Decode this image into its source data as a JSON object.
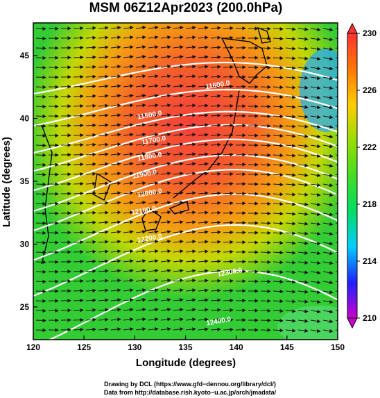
{
  "chart_data": {
    "type": "heatmap",
    "title": "MSM 06Z12Apr2023 (200.0hPa)",
    "xlabel": "Longitude (degrees)",
    "ylabel": "Latitude  (degrees)",
    "xlim": [
      120,
      150
    ],
    "ylim": [
      22.4,
      47.6
    ],
    "x_ticks": [
      120,
      125,
      130,
      135,
      140,
      145,
      150
    ],
    "y_ticks": [
      25,
      30,
      35,
      40,
      45
    ],
    "colorbar": {
      "min": 210,
      "max": 230,
      "ticks": [
        210,
        214,
        218,
        222,
        226,
        230
      ],
      "colormap": [
        "#cc00cc",
        "#2020ff",
        "#00ccff",
        "#00dd66",
        "#44dd22",
        "#99dd00",
        "#ffcc00",
        "#ff7700",
        "#ff3333"
      ]
    },
    "field": "temperature (shaded) with wind vectors and geopotential height contours",
    "contours": [
      {
        "label": "11500.0",
        "lon": 131.5,
        "lat": 40.1
      },
      {
        "label": "11600.0",
        "lon": 138.2,
        "lat": 42.5
      },
      {
        "label": "11700.0",
        "lon": 131.9,
        "lat": 38.1
      },
      {
        "label": "11800.0",
        "lon": 131.5,
        "lat": 36.8
      },
      {
        "label": "11900.0",
        "lon": 131.0,
        "lat": 35.4
      },
      {
        "label": "12000.0",
        "lon": 131.5,
        "lat": 33.9
      },
      {
        "label": "12100.0",
        "lon": 130.9,
        "lat": 32.5
      },
      {
        "label": "12200.0",
        "lon": 131.5,
        "lat": 30.3
      },
      {
        "label": "12300.0",
        "lon": 139.4,
        "lat": 27.6
      },
      {
        "label": "12400.0",
        "lon": 138.3,
        "lat": 23.7
      }
    ],
    "grid": false
  },
  "credits": {
    "line1": "Drawing by DCL (https://www.gfd−dennou.org/library/dcl/)",
    "line2": "Data from http://database.rish.kyoto−u.ac.jp/arch/jmadata/"
  }
}
